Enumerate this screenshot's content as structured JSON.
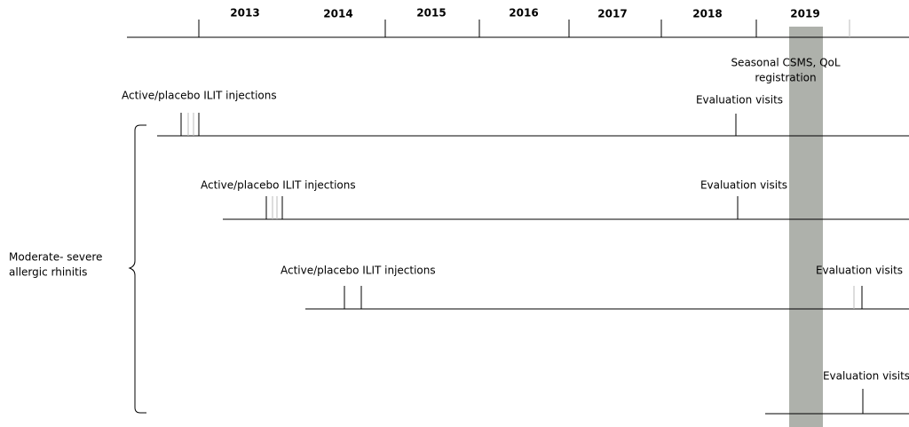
{
  "timeline": {
    "years": [
      "2013",
      "2014",
      "2015",
      "2016",
      "2017",
      "2018",
      "2019"
    ],
    "seasonal_label": [
      "Seasonal CSMS, QoL",
      "registration"
    ]
  },
  "group_label": [
    "Moderate- severe",
    "allergic rhinitis"
  ],
  "rows": [
    {
      "injection_label": "Active/placebo ILIT injections",
      "evaluation_label": "Evaluation visits"
    },
    {
      "injection_label": "Active/placebo ILIT injections",
      "evaluation_label": "Evaluation visits"
    },
    {
      "injection_label": "Active/placebo ILIT injections",
      "evaluation_label": "Evaluation visits"
    },
    {
      "evaluation_label": "Evaluation visits"
    }
  ]
}
